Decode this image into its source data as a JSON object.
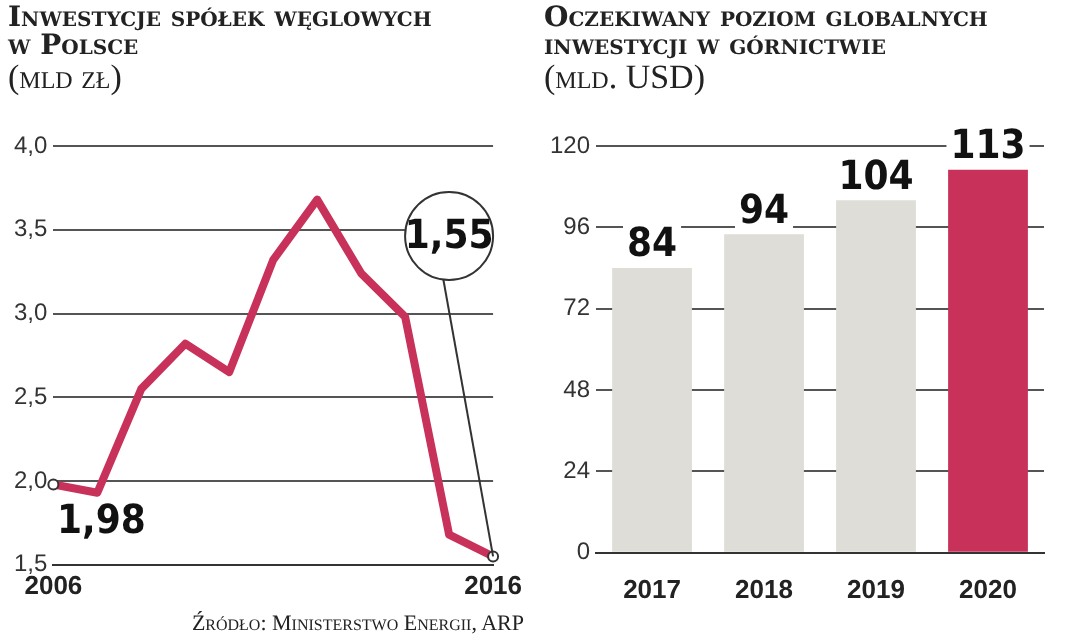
{
  "chart_data": [
    {
      "type": "line",
      "title": "Inwestycje spółek węglowych w Polsce",
      "subtitle": "(mld zł)",
      "x": [
        2006,
        2007,
        2008,
        2009,
        2010,
        2011,
        2012,
        2013,
        2014,
        2015,
        2016
      ],
      "series": [
        {
          "color": "#c8325a",
          "values": [
            1.98,
            1.93,
            2.55,
            2.82,
            2.65,
            3.32,
            3.68,
            3.24,
            2.98,
            1.68,
            1.55
          ],
          "value_labels": [
            "1,98",
            null,
            null,
            null,
            null,
            null,
            null,
            null,
            null,
            null,
            "1,55"
          ]
        }
      ],
      "xlim": [
        2006,
        2016
      ],
      "xticks": [
        2006,
        2016
      ],
      "ylim": [
        1.5,
        4
      ],
      "yticks": [
        {
          "value": 1.5,
          "label": "1,5"
        },
        {
          "value": 2,
          "label": "2,0"
        },
        {
          "value": 2.5,
          "label": "2,5"
        },
        {
          "value": 3,
          "label": "3,0"
        },
        {
          "value": 3.5,
          "label": "3,5"
        },
        {
          "value": 4,
          "label": "4,0"
        }
      ],
      "grid": "y",
      "legend": false,
      "marker": "none",
      "line_style": "solid",
      "annotations": [
        "Źródło: Ministerstwo Energii, ARP"
      ]
    },
    {
      "type": "bar",
      "title": "Oczekiwany poziom globalnych inwestycji w górnictwie",
      "subtitle": "(mld. USD)",
      "categories": [
        "2017",
        "2018",
        "2019",
        "2020"
      ],
      "values": [
        84,
        94,
        104,
        113
      ],
      "colors": [
        "#deddd8",
        "#deddd8",
        "#deddd8",
        "#c8325a"
      ],
      "ylim": [
        0,
        120
      ],
      "yticks": [
        0,
        24,
        48,
        72,
        96,
        120
      ],
      "grid": "y",
      "legend": false,
      "data_labels": true
    }
  ]
}
